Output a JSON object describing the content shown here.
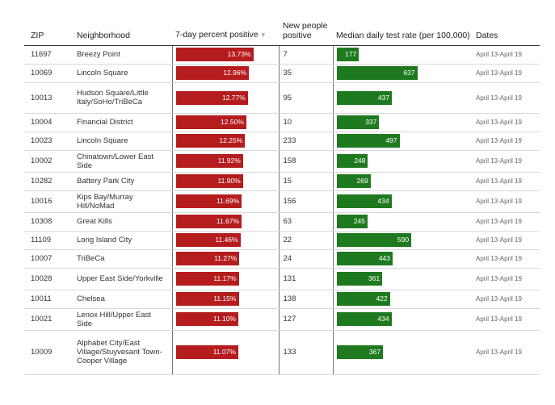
{
  "headers": {
    "zip": "ZIP",
    "neighborhood": "Neighborhood",
    "rate": "7-day percent positive",
    "rate_sort_icon": "sort-down-icon",
    "people": "New people positive",
    "test": "Median daily test rate (per 100,000)",
    "dates": "Dates"
  },
  "colors": {
    "rate_bar": "#b51c1e",
    "test_bar": "#1f7a1f"
  },
  "rows": [
    {
      "zip": "11697",
      "neighborhood": "Breezy Point",
      "rate_label": "13.73%",
      "rate": 13.73,
      "people": "7",
      "test": 177,
      "dates": "April 13-April 19"
    },
    {
      "zip": "10069",
      "neighborhood": "Lincoln Square",
      "rate_label": "12.96%",
      "rate": 12.96,
      "people": "35",
      "test": 637,
      "dates": "April 13-April 19"
    },
    {
      "zip": "10013",
      "neighborhood": "Hudson Square/Little Italy/SoHo/TriBeCa",
      "rate_label": "12.77%",
      "rate": 12.77,
      "people": "95",
      "test": 437,
      "dates": "April 13-April 19"
    },
    {
      "zip": "10004",
      "neighborhood": "Financial District",
      "rate_label": "12.50%",
      "rate": 12.5,
      "people": "10",
      "test": 337,
      "dates": "April 13-April 19"
    },
    {
      "zip": "10023",
      "neighborhood": "Lincoln Square",
      "rate_label": "12.25%",
      "rate": 12.25,
      "people": "233",
      "test": 497,
      "dates": "April 13-April 19"
    },
    {
      "zip": "10002",
      "neighborhood": "Chinatown/Lower East Side",
      "rate_label": "11.92%",
      "rate": 11.92,
      "people": "158",
      "test": 248,
      "dates": "April 13-April 19"
    },
    {
      "zip": "10282",
      "neighborhood": "Battery Park City",
      "rate_label": "11.90%",
      "rate": 11.9,
      "people": "15",
      "test": 269,
      "dates": "April 13-April 19"
    },
    {
      "zip": "10016",
      "neighborhood": "Kips Bay/Murray Hill/NoMad",
      "rate_label": "11.69%",
      "rate": 11.69,
      "people": "156",
      "test": 434,
      "dates": "April 13-April 19"
    },
    {
      "zip": "10308",
      "neighborhood": "Great Kills",
      "rate_label": "11.67%",
      "rate": 11.67,
      "people": "63",
      "test": 245,
      "dates": "April 13-April 19"
    },
    {
      "zip": "11109",
      "neighborhood": "Long Island City",
      "rate_label": "11.46%",
      "rate": 11.46,
      "people": "22",
      "test": 590,
      "dates": "April 13-April 19"
    },
    {
      "zip": "10007",
      "neighborhood": "TriBeCa",
      "rate_label": "11.27%",
      "rate": 11.27,
      "people": "24",
      "test": 443,
      "dates": "April 13-April 19"
    },
    {
      "zip": "10028",
      "neighborhood": "Upper East Side/Yorkville",
      "rate_label": "11.17%",
      "rate": 11.17,
      "people": "131",
      "test": 361,
      "dates": "April 13-April 19"
    },
    {
      "zip": "10011",
      "neighborhood": "Chelsea",
      "rate_label": "11.15%",
      "rate": 11.15,
      "people": "138",
      "test": 422,
      "dates": "April 13-April 19"
    },
    {
      "zip": "10021",
      "neighborhood": "Lenox Hill/Upper East Side",
      "rate_label": "11.10%",
      "rate": 11.1,
      "people": "127",
      "test": 434,
      "dates": "April 13-April 19"
    },
    {
      "zip": "10009",
      "neighborhood": "Alphabet City/East Village/Stuyvesant Town-Cooper Village",
      "rate_label": "11.07%",
      "rate": 11.07,
      "people": "133",
      "test": 367,
      "dates": "April 13-April 19"
    }
  ]
}
